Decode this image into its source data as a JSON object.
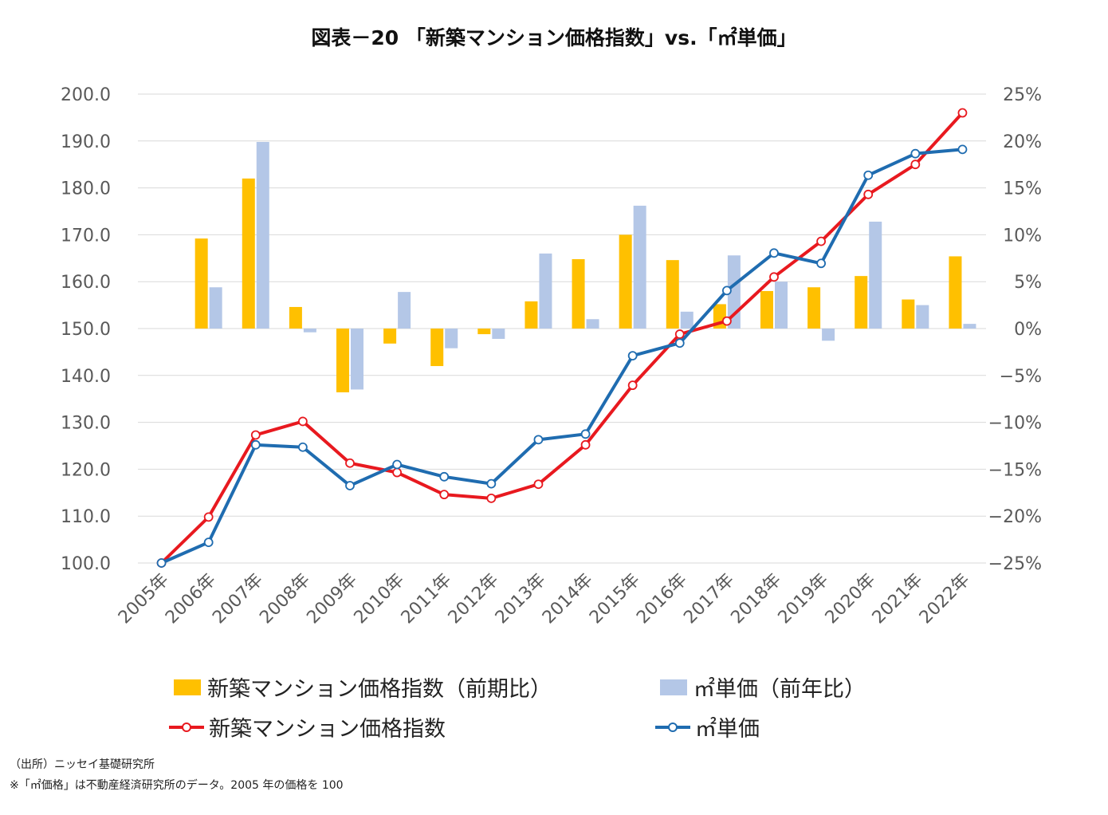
{
  "title": "図表－20 「新築マンション価格指数」vs.「㎡単価」",
  "legend": {
    "bar1": "新築マンション価格指数（前期比）",
    "bar2": "㎡単価（前年比）",
    "line1": "新築マンション価格指数",
    "line2": "㎡単価"
  },
  "notes": {
    "source": "（出所）ニッセイ基礎研究所",
    "remark": "※「㎡価格」は不動産経済研究所のデータ。2005 年の価格を 100"
  },
  "colors": {
    "bar1": "#FFC000",
    "bar2": "#B4C7E7",
    "line1": "#E8191F",
    "line2": "#1F6CB0",
    "grid": "#D9D9D9"
  },
  "chart_data": {
    "type": "bar+line",
    "categories": [
      "2005年",
      "2006年",
      "2007年",
      "2008年",
      "2009年",
      "2010年",
      "2011年",
      "2012年",
      "2013年",
      "2014年",
      "2015年",
      "2016年",
      "2017年",
      "2018年",
      "2019年",
      "2020年",
      "2021年",
      "2022年"
    ],
    "left_axis": {
      "ylim": [
        100,
        200
      ],
      "ticks": [
        "100.0",
        "110.0",
        "120.0",
        "130.0",
        "140.0",
        "150.0",
        "160.0",
        "170.0",
        "180.0",
        "190.0",
        "200.0"
      ]
    },
    "right_axis": {
      "ylim": [
        -25,
        25
      ],
      "ticks": [
        "-25%",
        "-20%",
        "-15%",
        "-10%",
        "-5%",
        "0%",
        "5%",
        "10%",
        "15%",
        "20%",
        "25%"
      ]
    },
    "bar_series": [
      {
        "name": "新築マンション価格指数（前期比）",
        "axis": "right",
        "values": [
          null,
          9.6,
          16.0,
          2.3,
          -6.8,
          -1.6,
          -4.0,
          -0.6,
          2.9,
          7.4,
          10.0,
          7.3,
          2.6,
          4.0,
          4.4,
          5.6,
          3.1,
          7.7
        ]
      },
      {
        "name": "㎡単価（前年比）",
        "axis": "right",
        "values": [
          null,
          4.4,
          19.9,
          -0.4,
          -6.5,
          3.9,
          -2.1,
          -1.1,
          8.0,
          1.0,
          13.1,
          1.8,
          7.8,
          5.0,
          -1.3,
          11.4,
          2.5,
          0.5
        ]
      }
    ],
    "line_series": [
      {
        "name": "新築マンション価格指数",
        "axis": "left",
        "values": [
          100.0,
          109.8,
          127.3,
          130.2,
          121.3,
          119.3,
          114.6,
          113.8,
          116.8,
          125.2,
          137.9,
          148.8,
          151.6,
          161.0,
          168.6,
          178.6,
          185.0,
          196.0
        ]
      },
      {
        "name": "㎡単価",
        "axis": "left",
        "values": [
          100.0,
          104.4,
          125.2,
          124.7,
          116.5,
          121.0,
          118.4,
          116.9,
          126.3,
          127.5,
          144.2,
          146.9,
          158.1,
          166.1,
          163.9,
          182.7,
          187.3,
          188.2
        ]
      }
    ],
    "grid": true,
    "legend_position": "bottom"
  }
}
